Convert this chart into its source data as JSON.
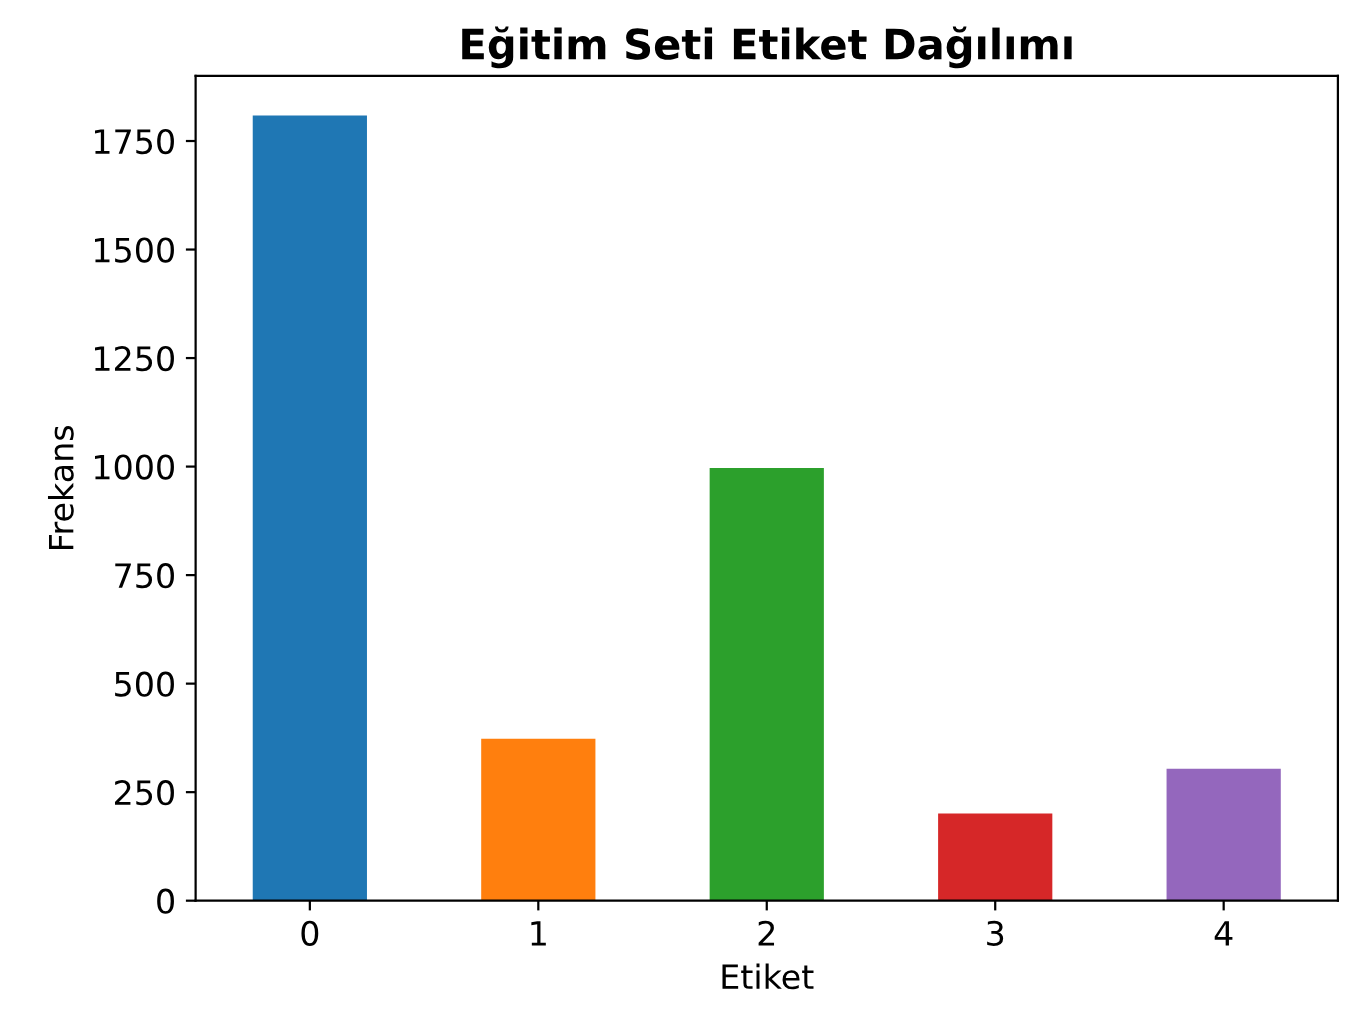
{
  "chart_data": {
    "type": "bar",
    "title": "Eğitim Seti Etiket Dağılımı",
    "xlabel": "Etiket",
    "ylabel": "Frekans",
    "categories": [
      "0",
      "1",
      "2",
      "3",
      "4"
    ],
    "values": [
      1809,
      373,
      997,
      201,
      304
    ],
    "colors": [
      "#1f77b4",
      "#ff7f0e",
      "#2ca02c",
      "#d62728",
      "#9467bd"
    ],
    "ylim": [
      0,
      1900
    ],
    "yticks": [
      0,
      250,
      500,
      750,
      1000,
      1250,
      1500,
      1750
    ],
    "grid": false,
    "legend": false
  }
}
